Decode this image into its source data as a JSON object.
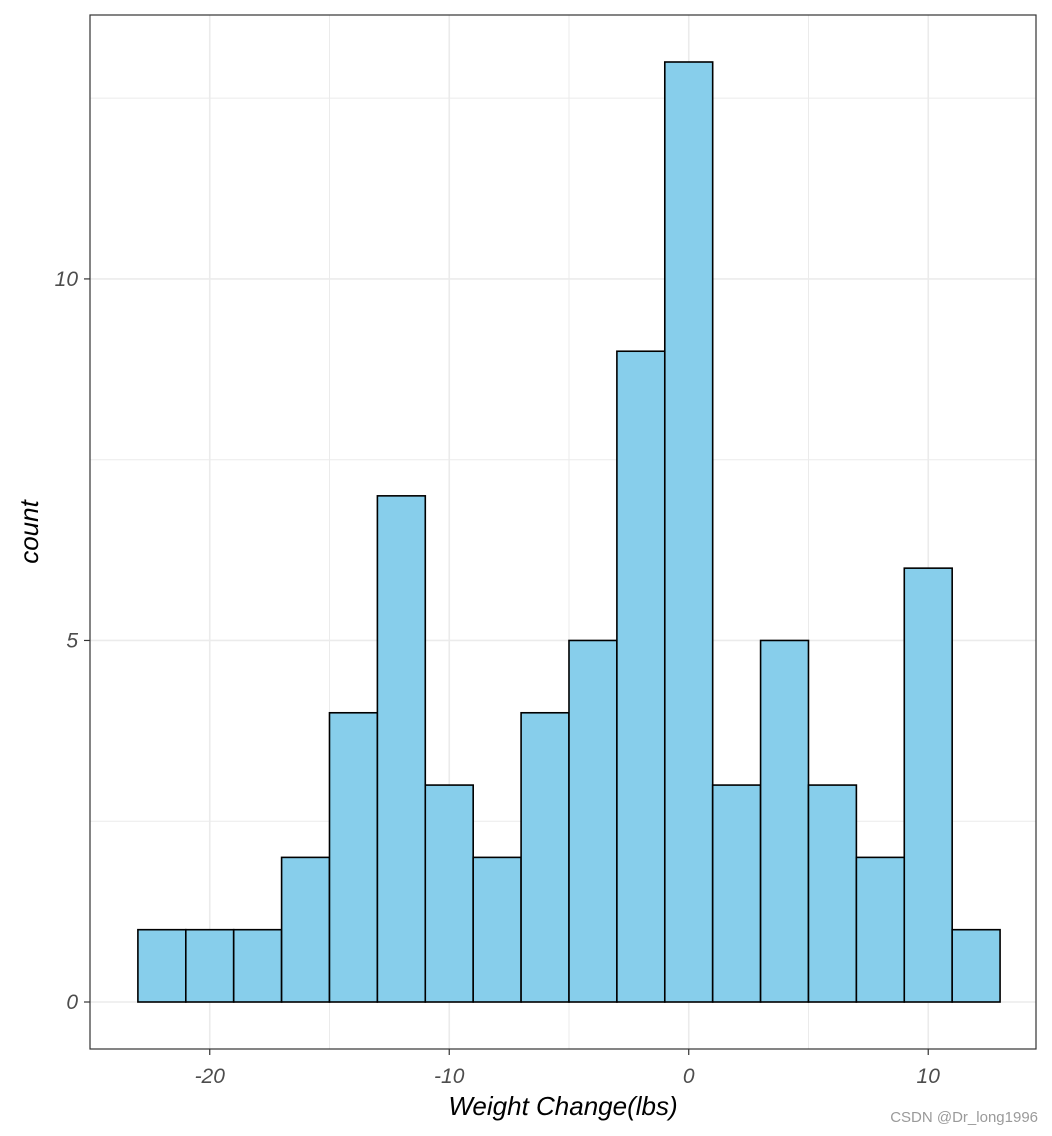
{
  "chart_data": {
    "type": "bar",
    "title": "",
    "xlabel": "Weight Change(lbs)",
    "ylabel": "count",
    "bin_width": 2,
    "bin_edges": [
      -23,
      -21,
      -19,
      -17,
      -15,
      -13,
      -11,
      -9,
      -7,
      -5,
      -3,
      -1,
      1,
      3,
      5,
      7,
      9,
      11,
      13
    ],
    "values": [
      1,
      1,
      1,
      2,
      4,
      7,
      3,
      2,
      4,
      5,
      9,
      13,
      3,
      5,
      3,
      2,
      6,
      1
    ],
    "xlim": [
      -25,
      14.5
    ],
    "ylim": [
      -0.65,
      13.65
    ],
    "x_ticks": [
      -20,
      -10,
      0,
      10
    ],
    "x_tick_labels": [
      "-20",
      "-10",
      "0",
      "10"
    ],
    "y_ticks": [
      0,
      5,
      10
    ],
    "y_tick_labels": [
      "0",
      "5",
      "10"
    ],
    "x_minor_ticks": [
      -15,
      -5,
      5
    ],
    "y_minor_ticks": [
      2.5,
      7.5,
      12.5
    ],
    "grid": true,
    "colors": {
      "fill": "#87CEEB",
      "edge": "#000000",
      "grid": "#ebebeb",
      "panel_border": "#333333"
    }
  },
  "watermark": "CSDN @Dr_long1996"
}
